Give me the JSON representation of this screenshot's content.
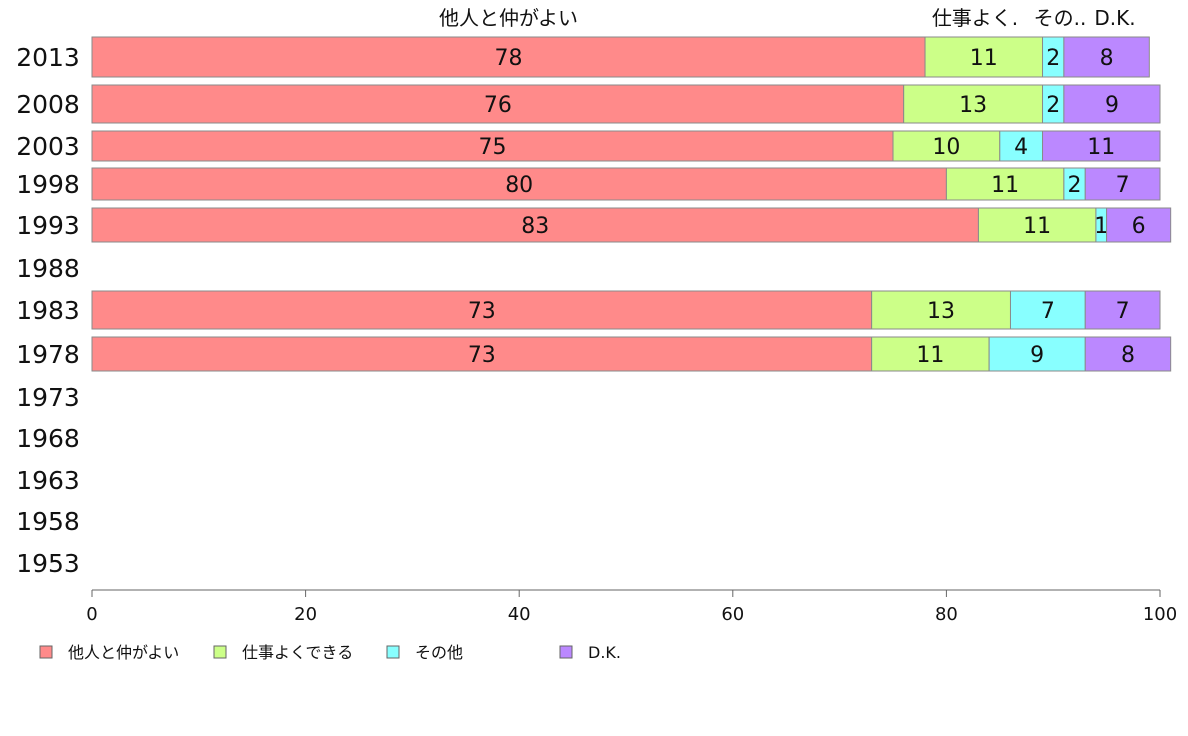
{
  "chart_data": {
    "type": "bar",
    "orientation": "horizontal",
    "stacked": true,
    "categories": [
      "2013",
      "2008",
      "2003",
      "1998",
      "1993",
      "1988",
      "1983",
      "1978",
      "1973",
      "1968",
      "1963",
      "1958",
      "1953"
    ],
    "series": [
      {
        "name": "他人と仲がよい",
        "color": "#ff8a8a",
        "values": [
          78,
          76,
          75,
          80,
          83,
          null,
          73,
          73,
          null,
          null,
          null,
          null,
          null
        ]
      },
      {
        "name": "仕事よくできる",
        "color": "#ccff88",
        "values": [
          11,
          13,
          10,
          11,
          11,
          null,
          13,
          11,
          null,
          null,
          null,
          null,
          null
        ]
      },
      {
        "name": "その他",
        "color": "#88ffff",
        "values": [
          2,
          2,
          4,
          2,
          1,
          null,
          7,
          9,
          null,
          null,
          null,
          null,
          null
        ]
      },
      {
        "name": "D.K.",
        "color": "#bb88ff",
        "values": [
          8,
          9,
          11,
          7,
          6,
          null,
          7,
          8,
          null,
          null,
          null,
          null,
          null
        ]
      }
    ],
    "top_labels": [
      "他人と仲がよい",
      "仕事よくできる",
      "その他",
      "D.K."
    ],
    "top_labels_shown": [
      "他人と仲がよい",
      "仕事よく.",
      "その..",
      "D.K."
    ],
    "xlim": [
      0,
      100
    ],
    "xticks": [
      "0",
      "20",
      "40",
      "60",
      "80",
      "100"
    ],
    "xlabel": "",
    "ylabel": "",
    "grid": false,
    "legend": "bottom"
  }
}
